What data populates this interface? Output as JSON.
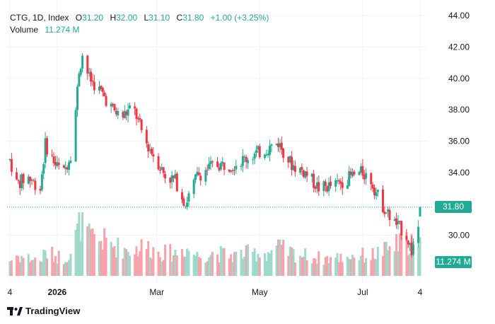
{
  "header": {
    "symbol": "CTG, 1D, Index",
    "open_key": "O",
    "open": "31.20",
    "high_key": "H",
    "high": "32.00",
    "low_key": "L",
    "low": "31.10",
    "close_key": "C",
    "close": "31.80",
    "change": "+1.00 (+3.25%)",
    "volume_label": "Volume",
    "volume_value": "11.274 M"
  },
  "footer": {
    "brand": "TradingView",
    "logo_icon": "tradingview-logo-icon"
  },
  "colors": {
    "up": "#22ab94",
    "down": "#f23645",
    "up_volume": "#9ed9cb",
    "down_volume": "#f6a3ab",
    "grid": "#f0f3fa",
    "text": "#131722"
  },
  "chart_data": {
    "type": "candlestick",
    "symbol": "CTG",
    "interval": "1D",
    "y_axis": {
      "position": "right",
      "range": [
        28,
        44
      ],
      "ticks": [
        30,
        32,
        34,
        36,
        38,
        40,
        42,
        44
      ],
      "tick_labels": [
        "30.00",
        "",
        "34.00",
        "36.00",
        "38.00",
        "40.00",
        "42.00",
        "44.00"
      ]
    },
    "x_axis": {
      "tick_labels": [
        "4",
        "2026",
        "Mar",
        "May",
        "Jul",
        "4"
      ],
      "tick_dates": [
        "2025-12-04",
        "2026-01-01",
        "2026-03-01",
        "2026-05-01",
        "2026-07-01",
        "2026-08-04"
      ]
    },
    "last_price": {
      "value": 31.8,
      "label": "31.80"
    },
    "last_volume": {
      "value": 11.274,
      "label": "11.274 M"
    },
    "anchors": [
      {
        "date": "2025-12-04",
        "price": 34.8,
        "volume": 6
      },
      {
        "date": "2025-12-08",
        "price": 33.3,
        "volume": 8
      },
      {
        "date": "2025-12-15",
        "price": 33.7,
        "volume": 7
      },
      {
        "date": "2025-12-22",
        "price": 33.0,
        "volume": 6
      },
      {
        "date": "2025-12-25",
        "price": 35.8,
        "volume": 9
      },
      {
        "date": "2025-12-31",
        "price": 34.5,
        "volume": 8
      },
      {
        "date": "2026-01-05",
        "price": 34.0,
        "volume": 7
      },
      {
        "date": "2026-01-10",
        "price": 35.5,
        "volume": 10
      },
      {
        "date": "2026-01-14",
        "price": 40.5,
        "volume": 20
      },
      {
        "date": "2026-01-16",
        "price": 41.5,
        "volume": 24
      },
      {
        "date": "2026-01-20",
        "price": 40.0,
        "volume": 15
      },
      {
        "date": "2026-01-28",
        "price": 39.0,
        "volume": 14
      },
      {
        "date": "2026-02-03",
        "price": 38.0,
        "volume": 12
      },
      {
        "date": "2026-02-08",
        "price": 37.5,
        "volume": 11
      },
      {
        "date": "2026-02-15",
        "price": 38.2,
        "volume": 10
      },
      {
        "date": "2026-02-22",
        "price": 36.0,
        "volume": 12
      },
      {
        "date": "2026-02-28",
        "price": 35.0,
        "volume": 10
      },
      {
        "date": "2026-03-06",
        "price": 33.8,
        "volume": 9
      },
      {
        "date": "2026-03-12",
        "price": 33.5,
        "volume": 9
      },
      {
        "date": "2026-03-18",
        "price": 32.0,
        "volume": 11
      },
      {
        "date": "2026-03-25",
        "price": 33.8,
        "volume": 8
      },
      {
        "date": "2026-04-04",
        "price": 34.5,
        "volume": 9
      },
      {
        "date": "2026-04-15",
        "price": 34.5,
        "volume": 8
      },
      {
        "date": "2026-04-25",
        "price": 35.0,
        "volume": 9
      },
      {
        "date": "2026-05-05",
        "price": 35.5,
        "volume": 9
      },
      {
        "date": "2026-05-12",
        "price": 35.9,
        "volume": 11
      },
      {
        "date": "2026-05-20",
        "price": 34.5,
        "volume": 9
      },
      {
        "date": "2026-05-28",
        "price": 34.0,
        "volume": 8
      },
      {
        "date": "2026-06-05",
        "price": 33.0,
        "volume": 7
      },
      {
        "date": "2026-06-15",
        "price": 33.2,
        "volume": 7
      },
      {
        "date": "2026-06-25",
        "price": 33.8,
        "volume": 8
      },
      {
        "date": "2026-07-01",
        "price": 34.0,
        "volume": 8
      },
      {
        "date": "2026-07-06",
        "price": 33.5,
        "volume": 8
      },
      {
        "date": "2026-07-10",
        "price": 32.5,
        "volume": 9
      },
      {
        "date": "2026-07-15",
        "price": 31.5,
        "volume": 10
      },
      {
        "date": "2026-07-20",
        "price": 30.8,
        "volume": 12
      },
      {
        "date": "2026-07-27",
        "price": 30.0,
        "volume": 13
      },
      {
        "date": "2026-07-30",
        "price": 29.0,
        "volume": 14
      },
      {
        "date": "2026-08-03",
        "price": 30.6,
        "volume": 9
      },
      {
        "date": "2026-08-04",
        "price": 31.8,
        "volume": 11.274
      }
    ]
  }
}
